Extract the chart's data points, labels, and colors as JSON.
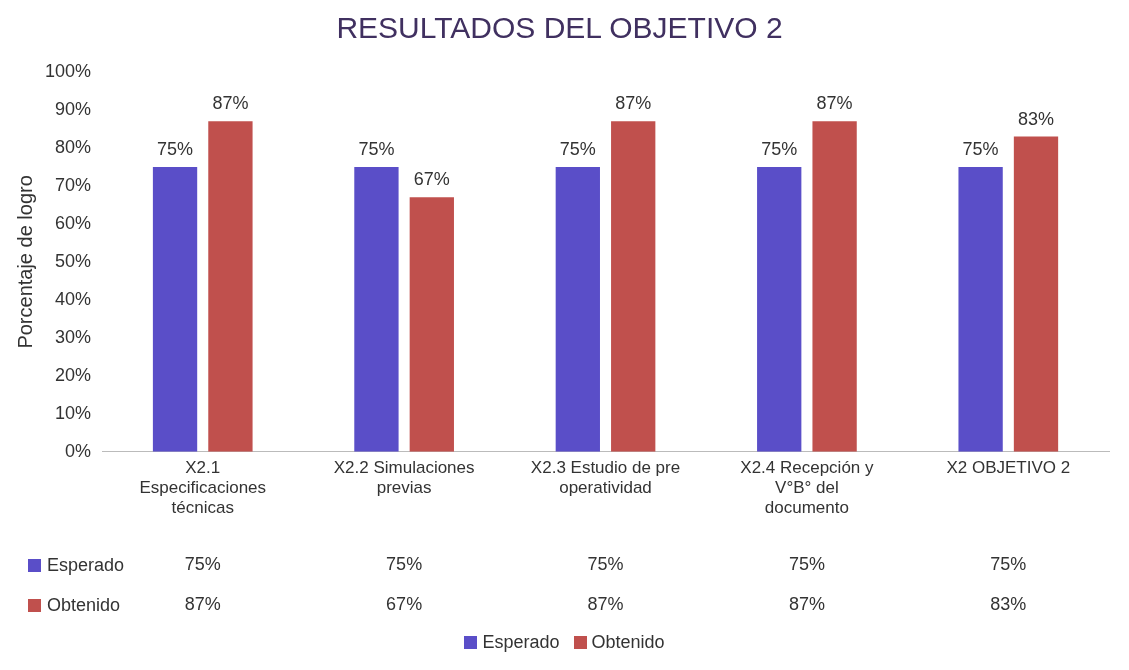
{
  "chart_data": {
    "type": "bar",
    "title": "RESULTADOS DEL OBJETIVO 2",
    "ylabel": "Porcentaje de logro",
    "categories": [
      "X2.1 Especificaciones técnicas",
      "X2.2 Simulaciones previas",
      "X2.3 Estudio de pre operatividad",
      "X2.4 Recepción y V°B° del documento",
      "X2 OBJETIVO 2"
    ],
    "series": [
      {
        "name": "Esperado",
        "color": "#5a4ec8",
        "values": [
          75,
          75,
          75,
          75,
          75
        ],
        "value_labels": [
          "75%",
          "75%",
          "75%",
          "75%",
          "75%"
        ]
      },
      {
        "name": "Obtenido",
        "color": "#c0504d",
        "values": [
          87,
          67,
          87,
          87,
          83
        ],
        "value_labels": [
          "87%",
          "67%",
          "87%",
          "87%",
          "83%"
        ]
      }
    ],
    "ylim": [
      0,
      100
    ],
    "yticks": [
      {
        "value": 0,
        "label": "0%"
      },
      {
        "value": 10,
        "label": "10%"
      },
      {
        "value": 20,
        "label": "20%"
      },
      {
        "value": 30,
        "label": "30%"
      },
      {
        "value": 40,
        "label": "40%"
      },
      {
        "value": 50,
        "label": "50%"
      },
      {
        "value": 60,
        "label": "60%"
      },
      {
        "value": 70,
        "label": "70%"
      },
      {
        "value": 80,
        "label": "80%"
      },
      {
        "value": 90,
        "label": "90%"
      },
      {
        "value": 100,
        "label": "100%"
      }
    ],
    "grid": false,
    "legend": "bottom"
  }
}
